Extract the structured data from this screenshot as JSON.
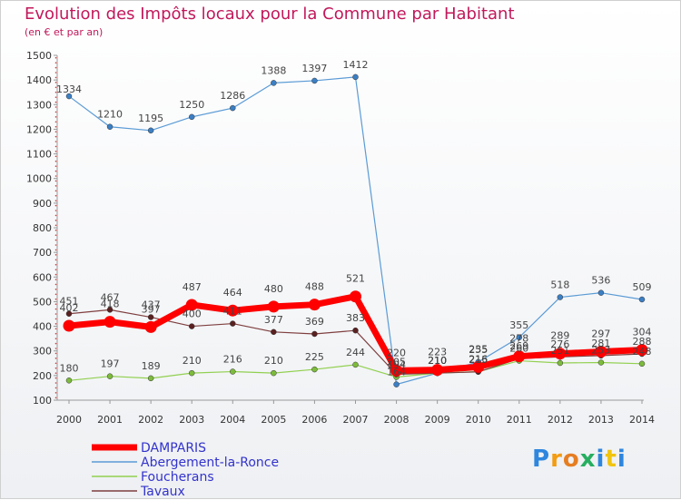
{
  "title": "Evolution des Impôts locaux pour la Commune par Habitant",
  "subtitle": "(en € et par an)",
  "logo_text": "Proxiti",
  "chart_data": {
    "type": "line",
    "title": "Evolution des Impôts locaux pour la Commune par Habitant",
    "subtitle": "(en € et par an)",
    "xlabel": "",
    "ylabel": "",
    "x": [
      "2000",
      "2001",
      "2002",
      "2003",
      "2004",
      "2005",
      "2006",
      "2007",
      "2008",
      "2009",
      "2010",
      "2011",
      "2012",
      "2013",
      "2014"
    ],
    "ylim": [
      100,
      1500
    ],
    "yticks": [
      100,
      200,
      300,
      400,
      500,
      600,
      700,
      800,
      900,
      1000,
      1100,
      1200,
      1300,
      1400,
      1500
    ],
    "grid": false,
    "legend_position": "bottom-left",
    "series": [
      {
        "name": "DAMPARIS",
        "color": "#ff0000",
        "legend_color": "#3333cc",
        "values": [
          402,
          418,
          397,
          487,
          464,
          480,
          488,
          521,
          220,
          223,
          235,
          278,
          289,
          297,
          304
        ]
      },
      {
        "name": "Abergement-la-Ronce",
        "color": "#5b9bd5",
        "legend_color": "#3333cc",
        "values": [
          1334,
          1210,
          1195,
          1250,
          1286,
          1388,
          1397,
          1412,
          164,
          210,
          255,
          355,
          518,
          536,
          509
        ]
      },
      {
        "name": "Foucherans",
        "color": "#92d050",
        "legend_color": "#3333cc",
        "values": [
          180,
          197,
          189,
          210,
          216,
          210,
          225,
          244,
          194,
          210,
          216,
          260,
          251,
          253,
          248
        ]
      },
      {
        "name": "Tavaux",
        "color": "#7f3f3f",
        "legend_color": "#3333cc",
        "values": [
          451,
          467,
          437,
          400,
          411,
          377,
          369,
          383,
          205,
          210,
          215,
          269,
          276,
          281,
          288
        ]
      }
    ],
    "point_labels": [
      {
        "series": "DAMPARIS",
        "labels": [
          "402",
          "418",
          "397",
          "487",
          "464",
          "480",
          "488",
          "521",
          "220",
          "223",
          "235",
          "278",
          "289",
          "297",
          "304"
        ]
      },
      {
        "series": "Abergement-la-Ronce",
        "labels": [
          "1334",
          "1210",
          "1195",
          "1250",
          "1286",
          "1388",
          "1397",
          "1412",
          "164",
          "210",
          "255",
          "355",
          "518",
          "536",
          "509"
        ]
      },
      {
        "series": "Foucherans",
        "labels": [
          "180",
          "197",
          "189",
          "210",
          "216",
          "210",
          "225",
          "244",
          "194",
          "210",
          "216",
          "260",
          "251",
          "253",
          "248"
        ]
      },
      {
        "series": "Tavaux",
        "labels": [
          "451",
          "467",
          "437",
          "400",
          "411",
          "377",
          "369",
          "383",
          "205",
          "210",
          "215",
          "269",
          "276",
          "281",
          "288"
        ]
      }
    ]
  }
}
